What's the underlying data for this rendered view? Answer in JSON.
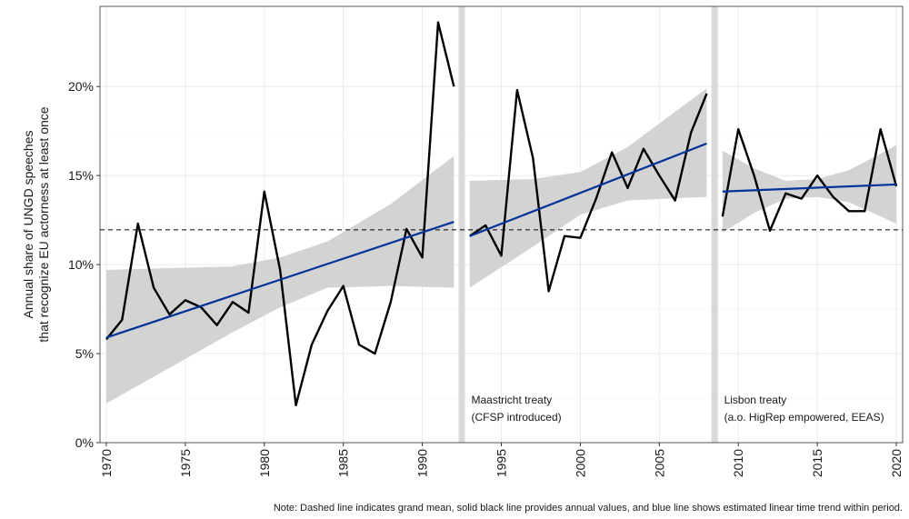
{
  "chart_data": {
    "type": "line",
    "ylabel_lines": [
      "Annual share of UNGD speeches",
      "that recognize EU actorness at least once"
    ],
    "xlim": [
      1970,
      2020
    ],
    "ylim": [
      0,
      24.5
    ],
    "yticks": [
      0,
      5,
      10,
      15,
      20
    ],
    "ytick_labels": [
      "0%",
      "5%",
      "10%",
      "15%",
      "20%"
    ],
    "xticks": [
      1970,
      1975,
      1980,
      1985,
      1990,
      1995,
      2000,
      2005,
      2010,
      2015,
      2020
    ],
    "xtick_labels": [
      "1970",
      "1975",
      "1980",
      "1985",
      "1990",
      "1995",
      "2000",
      "2005",
      "2010",
      "2015",
      "2020"
    ],
    "grand_mean": 11.95,
    "periods": [
      {
        "years": [
          1970,
          1971,
          1972,
          1973,
          1974,
          1975,
          1976,
          1977,
          1978,
          1979,
          1980,
          1981,
          1982,
          1983,
          1984,
          1985,
          1986,
          1987,
          1988,
          1989,
          1990,
          1991,
          1992
        ],
        "values": [
          5.8,
          6.9,
          12.3,
          8.7,
          7.2,
          8.0,
          7.6,
          6.6,
          7.9,
          7.3,
          14.1,
          9.7,
          2.1,
          5.5,
          7.4,
          8.8,
          5.5,
          5.0,
          7.9,
          12.0,
          10.4,
          23.6,
          20.0
        ],
        "trend": {
          "x": [
            1970,
            1992
          ],
          "y": [
            5.9,
            12.4
          ]
        },
        "ci": {
          "x": [
            1970,
            1978,
            1981,
            1984,
            1988,
            1992
          ],
          "lower": [
            2.2,
            6.2,
            7.6,
            8.7,
            8.8,
            8.7
          ],
          "upper": [
            9.7,
            9.9,
            10.4,
            11.3,
            13.4,
            16.1
          ]
        }
      },
      {
        "years": [
          1993,
          1994,
          1995,
          1996,
          1997,
          1998,
          1999,
          2000,
          2001,
          2002,
          2003,
          2004,
          2005,
          2006,
          2007,
          2008
        ],
        "values": [
          11.6,
          12.2,
          10.5,
          19.8,
          16.0,
          8.5,
          11.6,
          11.5,
          13.7,
          16.3,
          14.3,
          16.5,
          15.0,
          13.6,
          17.4,
          19.6
        ],
        "trend": {
          "x": [
            1993,
            2008
          ],
          "y": [
            11.6,
            16.8
          ]
        },
        "ci": {
          "x": [
            1993,
            1997,
            2000,
            2003,
            2008
          ],
          "lower": [
            8.7,
            11.0,
            12.8,
            13.6,
            13.8
          ],
          "upper": [
            14.7,
            14.8,
            15.2,
            16.6,
            19.9
          ]
        }
      },
      {
        "years": [
          2009,
          2010,
          2011,
          2012,
          2013,
          2014,
          2015,
          2016,
          2017,
          2018,
          2019,
          2020
        ],
        "values": [
          12.7,
          17.6,
          15.0,
          11.9,
          14.0,
          13.7,
          15.0,
          13.8,
          13.0,
          13.0,
          17.6,
          14.4
        ],
        "trend": {
          "x": [
            2009,
            2020
          ],
          "y": [
            14.1,
            14.5
          ]
        },
        "ci": {
          "x": [
            2009,
            2011,
            2013,
            2015,
            2017,
            2020
          ],
          "lower": [
            11.8,
            12.9,
            13.7,
            13.8,
            13.5,
            12.3
          ],
          "upper": [
            16.4,
            15.4,
            14.7,
            14.8,
            15.3,
            16.7
          ]
        }
      }
    ],
    "period_breaks": [
      1992.5,
      2008.5
    ],
    "annotations": [
      {
        "lines": [
          "Maastricht treaty",
          "(CFSP introduced)"
        ],
        "x": 1993.1,
        "y": 2.2
      },
      {
        "lines": [
          "Lisbon treaty",
          "(a.o. HigRep empowered, EEAS)"
        ],
        "x": 2009.1,
        "y": 2.2
      }
    ],
    "note": "Note: Dashed line indicates grand mean, solid black line provides annual values, and blue line shows estimated linear time trend within period.",
    "colors": {
      "values": "#000000",
      "trend": "#003399",
      "ci": "#d3d3d3",
      "break": "#d9d9d9",
      "grid": "#ebebeb",
      "mean": "#000000"
    }
  }
}
